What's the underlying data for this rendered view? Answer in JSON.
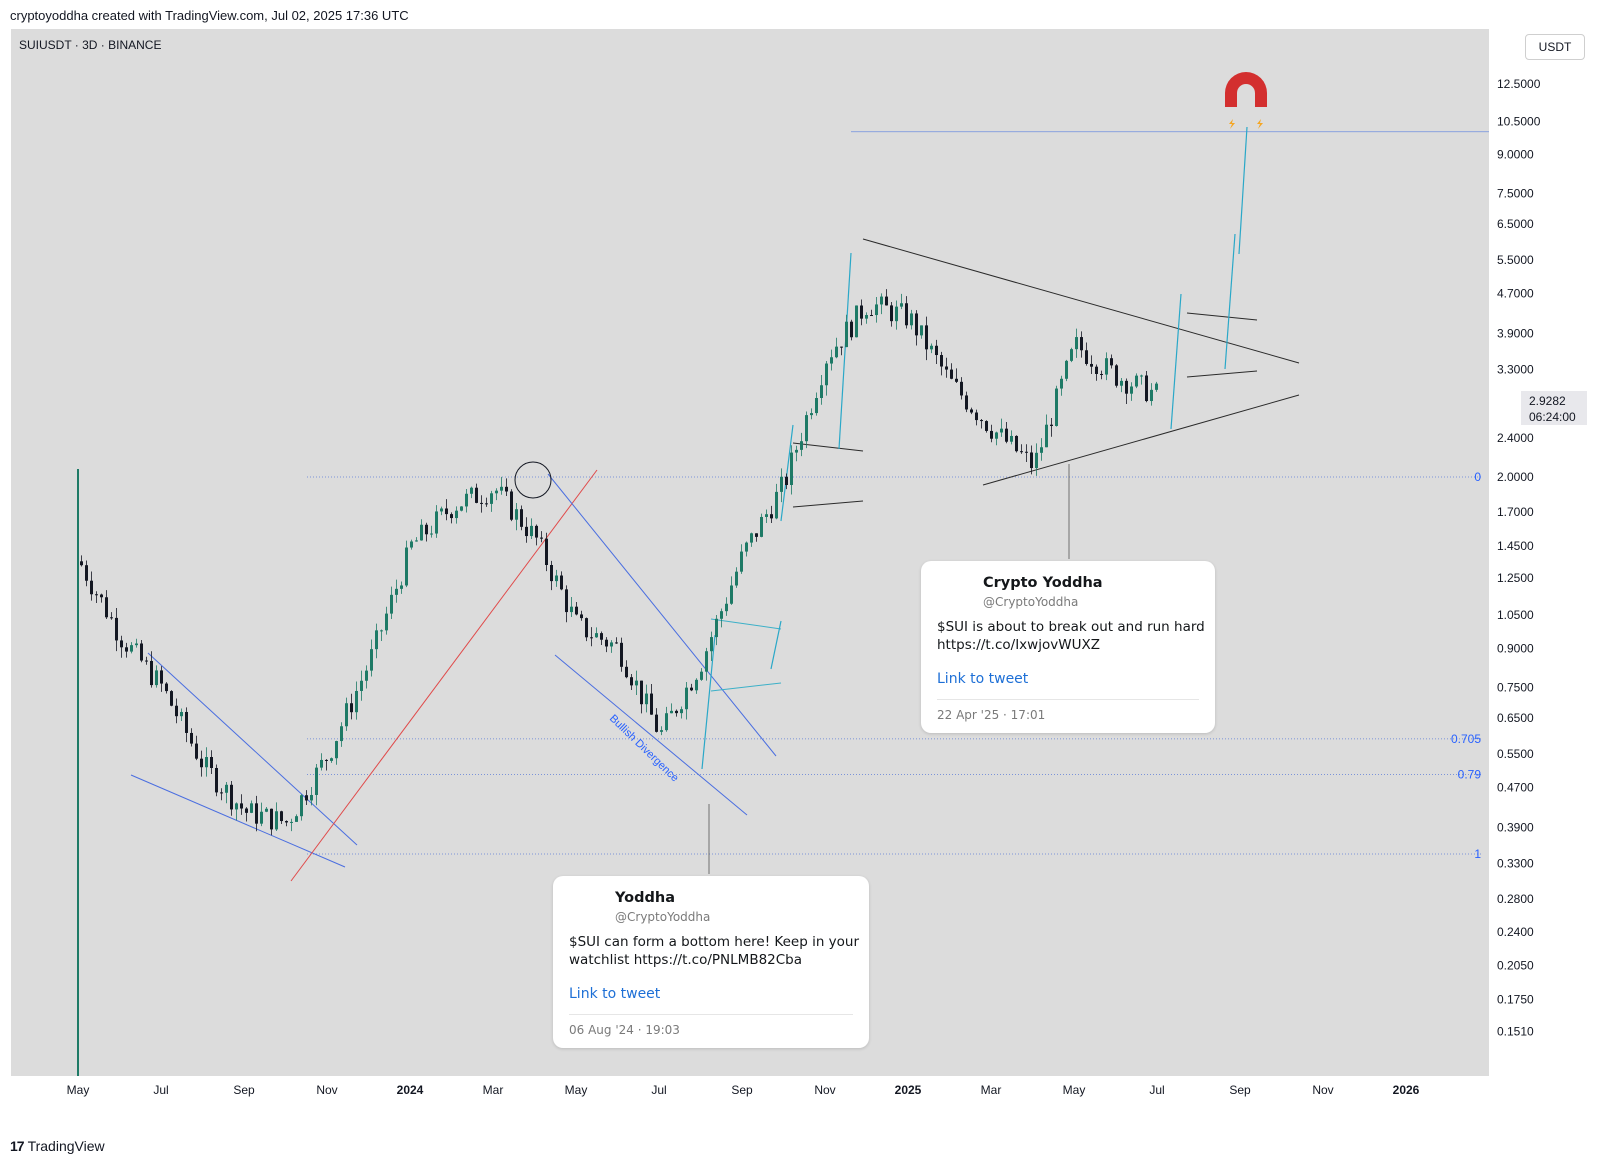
{
  "header": {
    "attribution": "cryptoyoddha created with TradingView.com, Jul 02, 2025 17:36 UTC"
  },
  "symbol_label": "SUIUSDT · 3D · BINANCE",
  "unit_label": "USDT",
  "current_price": {
    "price": "2.9282",
    "countdown": "06:24:00"
  },
  "brand": {
    "logo": "17",
    "name": "TradingView"
  },
  "fib_labels": [
    "0",
    "0.705",
    "0.79",
    "1"
  ],
  "annotation": "Bullish Divergence",
  "tweets": [
    {
      "name": "Crypto Yoddha",
      "handle": "@CryptoYoddha",
      "line1": "$SUI is about to break out and run hard",
      "line2": "https://t.co/IxwjovWUXZ",
      "link": "Link to tweet",
      "date": "22 Apr '25 · 17:01"
    },
    {
      "name": "Yoddha",
      "handle": "@CryptoYoddha",
      "line1": "$SUI can form a bottom here! Keep in your",
      "line2": "watchlist https://t.co/PNLMB82Cba",
      "link": "Link to tweet",
      "date": "06 Aug '24 · 19:03"
    }
  ],
  "chart_data": {
    "type": "line",
    "y_scale": "log",
    "y_ticks": [
      "12.5000",
      "10.5000",
      "9.0000",
      "7.5000",
      "6.5000",
      "5.5000",
      "4.7000",
      "3.9000",
      "3.3000",
      "2.4000",
      "2.0000",
      "1.7000",
      "1.4500",
      "1.2500",
      "1.0500",
      "0.9000",
      "0.7500",
      "0.6500",
      "0.5500",
      "0.4700",
      "0.3900",
      "0.3300",
      "0.2800",
      "0.2400",
      "0.2050",
      "0.1750",
      "0.1510"
    ],
    "x_ticks": [
      "May",
      "Jul",
      "Sep",
      "Nov",
      "2024",
      "Mar",
      "May",
      "Jul",
      "Sep",
      "Nov",
      "2025",
      "Mar",
      "May",
      "Jul",
      "Sep",
      "Nov",
      "2026"
    ],
    "fib_levels": [
      {
        "label": "0",
        "price": 2.0
      },
      {
        "label": "0.705",
        "price": 0.59
      },
      {
        "label": "0.79",
        "price": 0.5
      },
      {
        "label": "1",
        "price": 0.345
      }
    ],
    "target_level": 10.0,
    "series": [
      {
        "x": [
          "2023-05",
          "2023-06",
          "2023-07",
          "2023-08",
          "2023-09",
          "2023-10",
          "2023-11",
          "2023-12",
          "2024-01",
          "2024-02",
          "2024-03",
          "2024-04",
          "2024-05",
          "2024-06",
          "2024-07",
          "2024-08",
          "2024-09",
          "2024-10",
          "2024-11",
          "2024-12",
          "2025-01",
          "2025-02",
          "2025-03",
          "2025-04",
          "2025-05",
          "2025-06",
          "2025-07"
        ],
        "values": [
          1.35,
          0.95,
          0.75,
          0.52,
          0.42,
          0.4,
          0.55,
          0.85,
          1.45,
          1.75,
          1.9,
          1.5,
          1.0,
          0.9,
          0.6,
          0.85,
          1.4,
          1.95,
          3.5,
          4.5,
          4.2,
          3.1,
          2.5,
          2.1,
          3.7,
          3.2,
          2.93
        ]
      }
    ]
  }
}
